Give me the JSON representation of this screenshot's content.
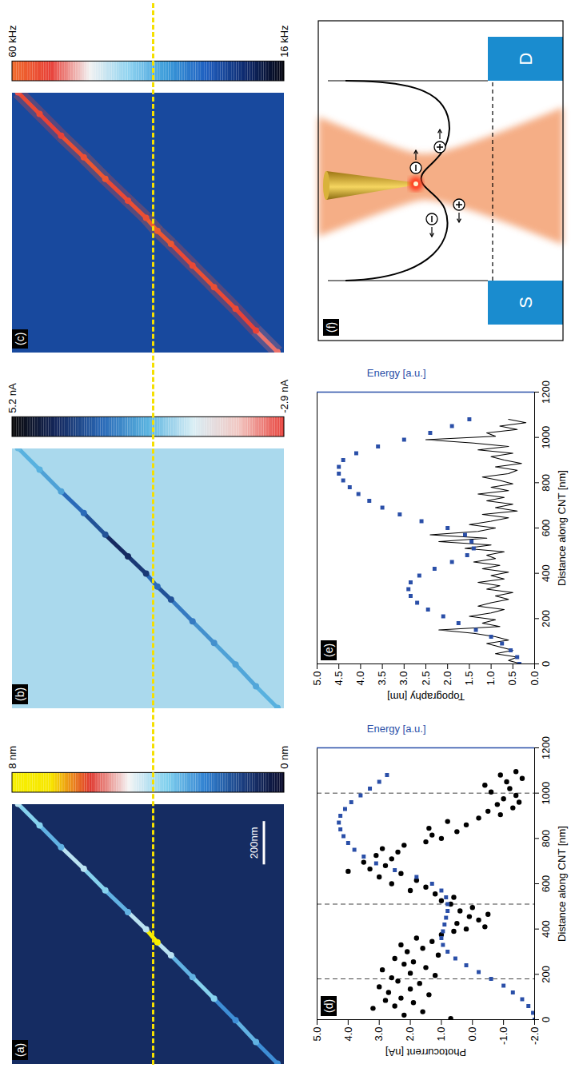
{
  "chart_data": [
    {
      "type": "heatmap",
      "title": "(a)",
      "xlim": [
        0,
        1200
      ],
      "ylim": [
        0,
        1200
      ],
      "tick_labels": false,
      "background": 0.8,
      "trace": {
        "x": [
          0,
          100,
          200,
          300,
          400,
          500,
          560,
          620,
          700,
          800,
          900,
          1000,
          1100,
          1200
        ],
        "y": [
          30,
          125,
          215,
          310,
          405,
          500,
          560,
          610,
          690,
          790,
          885,
          985,
          1080,
          1175
        ],
        "values": [
          2.5,
          3,
          2.5,
          3.5,
          3,
          4,
          8,
          4,
          3,
          3.5,
          4,
          3,
          3.5,
          4
        ]
      },
      "colorbar": {
        "range": [
          0,
          8
        ],
        "ticks": [
          {
            "value": 8,
            "label": "8 nm"
          },
          {
            "value": 0,
            "label": "0 nm"
          }
        ],
        "colors": [
          "#0a0a2a",
          "#1a3a7a",
          "#2f7fd0",
          "#7fd0ee",
          "#f4f4f4",
          "#e03a30",
          "#f7e600",
          "#f7f000"
        ]
      },
      "line_y": 560,
      "scale_bar": {
        "length": 200,
        "label": "200nm"
      }
    },
    {
      "type": "heatmap",
      "title": "(b)",
      "xlim": [
        0,
        1200
      ],
      "ylim": [
        0,
        1200
      ],
      "tick_labels": false,
      "background": 0.3,
      "trace": {
        "x": [
          0,
          100,
          200,
          300,
          400,
          500,
          560,
          620,
          700,
          800,
          900,
          1000,
          1100,
          1200
        ],
        "y": [
          30,
          125,
          215,
          310,
          405,
          500,
          560,
          610,
          690,
          790,
          885,
          985,
          1080,
          1175
        ],
        "values": [
          1.2,
          1.4,
          1.5,
          1.8,
          2.2,
          3,
          2.5,
          3.5,
          3.8,
          3,
          2.5,
          1.5,
          1.2,
          1.0
        ]
      },
      "colorbar": {
        "range": [
          -2.9,
          5.2
        ],
        "ticks": [
          {
            "value": 5.2,
            "label": "5.2 nA"
          },
          {
            "value": -2.9,
            "label": "-2.9 nA"
          }
        ],
        "colors": [
          "#e8423c",
          "#f2c7c2",
          "#d9eef5",
          "#5ab4e0",
          "#2a6ab8",
          "#14285e",
          "#0a0a0a"
        ]
      }
    },
    {
      "type": "heatmap",
      "title": "(c)",
      "xlim": [
        0,
        1200
      ],
      "ylim": [
        0,
        1200
      ],
      "tick_labels": false,
      "background": 26,
      "trace": {
        "x": [
          0,
          100,
          200,
          300,
          400,
          500,
          560,
          620,
          700,
          800,
          900,
          1000,
          1100,
          1200
        ],
        "y": [
          30,
          125,
          215,
          310,
          405,
          500,
          560,
          610,
          690,
          790,
          885,
          985,
          1080,
          1175
        ],
        "values": [
          52,
          54,
          55,
          56,
          55,
          57,
          58,
          56,
          55,
          57,
          56,
          54,
          55,
          53
        ]
      },
      "colorbar": {
        "range": [
          16,
          60
        ],
        "ticks": [
          {
            "value": 60,
            "label": "60 kHz"
          },
          {
            "value": 16,
            "label": "16 kHz"
          }
        ],
        "colors": [
          "#050510",
          "#0e2a6e",
          "#1f5fc0",
          "#3a9ad9",
          "#8fd3f0",
          "#f2f2f2",
          "#e84038",
          "#f06a2a"
        ]
      }
    },
    {
      "type": "scatter",
      "title": "(d)",
      "xlabel": "Distance along CNT [nm]",
      "ylabel": "Photocurrent [nA]",
      "y2label": "Energy [a.u.]",
      "xlim": [
        0,
        1200
      ],
      "ylim": [
        -2,
        5
      ],
      "y2lim": [
        -2,
        5
      ],
      "xticks": [
        0,
        200,
        400,
        600,
        800,
        1000,
        1200
      ],
      "yticks": [
        {
          "value": -2,
          "label": "-2.0"
        },
        {
          "value": -1,
          "label": "-1.0"
        },
        {
          "value": 0,
          "label": "0.0"
        },
        {
          "value": 1,
          "label": "1.0"
        },
        {
          "value": 2,
          "label": "2.0"
        },
        {
          "value": 3,
          "label": "3.0"
        },
        {
          "value": 4,
          "label": "4.0"
        },
        {
          "value": 5,
          "label": "5.0"
        }
      ],
      "vlines": [
        180,
        510,
        1000
      ],
      "series": [
        {
          "type": "scatter",
          "marker": "circle",
          "color": "#000000",
          "x": [
            5,
            20,
            35,
            50,
            60,
            75,
            85,
            95,
            110,
            120,
            135,
            145,
            160,
            170,
            185,
            195,
            205,
            220,
            230,
            245,
            255,
            270,
            285,
            300,
            315,
            330,
            345,
            360,
            375,
            390,
            400,
            410,
            425,
            440,
            455,
            465,
            480,
            495,
            510,
            525,
            540,
            555,
            570,
            585,
            600,
            615,
            630,
            645,
            655,
            665,
            680,
            695,
            710,
            725,
            740,
            755,
            770,
            785,
            800,
            815,
            830,
            845,
            860,
            875,
            890,
            905,
            920,
            935,
            950,
            960,
            975,
            990,
            1005,
            1020,
            1035,
            1050,
            1065,
            1080,
            1095
          ],
          "values": [
            0.7,
            2.2,
            1.6,
            3.2,
            2.5,
            1.9,
            2.8,
            2.3,
            1.4,
            2.7,
            2.0,
            3.0,
            1.7,
            2.4,
            2.6,
            1.2,
            2.0,
            2.9,
            1.5,
            2.2,
            1.9,
            2.5,
            1.1,
            2.1,
            1.6,
            2.3,
            1.3,
            1.8,
            1.0,
            0.6,
            0.2,
            -0.4,
            0.5,
            -0.2,
            0.1,
            -0.5,
            0.4,
            0.0,
            0.7,
            1.0,
            0.6,
            1.2,
            2.0,
            1.5,
            2.6,
            1.8,
            3.0,
            2.3,
            4.0,
            3.3,
            2.8,
            3.5,
            2.6,
            3.1,
            2.4,
            2.9,
            2.2,
            1.5,
            1.0,
            1.3,
            0.5,
            1.4,
            0.2,
            0.8,
            -0.2,
            -0.9,
            -0.5,
            -1.3,
            -0.8,
            -1.5,
            -1.0,
            -1.4,
            -0.6,
            -1.2,
            -0.4,
            -1.1,
            -1.6,
            -0.9,
            -1.4
          ]
        },
        {
          "type": "scatter",
          "marker": "square",
          "color": "#2a4fa8",
          "axis": "y2",
          "x": [
            0,
            30,
            60,
            90,
            120,
            150,
            180,
            210,
            240,
            270,
            300,
            330,
            360,
            390,
            420,
            450,
            480,
            510,
            540,
            570,
            600,
            630,
            660,
            690,
            720,
            750,
            780,
            810,
            840,
            870,
            900,
            930,
            960,
            990,
            1020,
            1050,
            1080
          ],
          "values": [
            -2.0,
            -1.95,
            -1.8,
            -1.6,
            -1.3,
            -1.0,
            -0.6,
            -0.2,
            0.2,
            0.55,
            0.8,
            0.95,
            1.0,
            0.95,
            0.9,
            0.85,
            0.8,
            0.8,
            0.85,
            1.0,
            1.3,
            1.8,
            2.5,
            3.1,
            3.5,
            3.8,
            4.0,
            4.15,
            4.25,
            4.3,
            4.25,
            4.1,
            3.9,
            3.6,
            3.3,
            3.0,
            2.75
          ]
        }
      ]
    },
    {
      "type": "line",
      "title": "(e)",
      "xlabel": "Distance along CNT [nm]",
      "ylabel": "Topography [nm]",
      "y2label": "Energy [a.u.]",
      "xlim": [
        0,
        1200
      ],
      "ylim": [
        0,
        5
      ],
      "y2lim": [
        0,
        5
      ],
      "xticks": [
        0,
        200,
        400,
        600,
        800,
        1000,
        1200
      ],
      "yticks": [
        {
          "value": 0,
          "label": "0.0"
        },
        {
          "value": 0.5,
          "label": "0.5"
        },
        {
          "value": 1,
          "label": "1.0"
        },
        {
          "value": 1.5,
          "label": "1.5"
        },
        {
          "value": 2,
          "label": "2.0"
        },
        {
          "value": 2.5,
          "label": "2.5"
        },
        {
          "value": 3,
          "label": "3.0"
        },
        {
          "value": 3.5,
          "label": "3.5"
        },
        {
          "value": 4,
          "label": "4.0"
        },
        {
          "value": 4.5,
          "label": "4.5"
        },
        {
          "value": 5,
          "label": "5.0"
        }
      ],
      "series": [
        {
          "type": "line",
          "color": "#000000",
          "x": [
            0,
            15,
            30,
            45,
            60,
            75,
            90,
            105,
            120,
            135,
            150,
            165,
            180,
            195,
            210,
            225,
            240,
            255,
            270,
            285,
            300,
            315,
            330,
            345,
            360,
            375,
            390,
            405,
            420,
            435,
            450,
            465,
            480,
            495,
            510,
            525,
            540,
            555,
            570,
            585,
            600,
            615,
            630,
            645,
            660,
            675,
            690,
            705,
            720,
            735,
            750,
            765,
            780,
            795,
            810,
            825,
            840,
            855,
            870,
            885,
            900,
            915,
            930,
            945,
            960,
            975,
            990,
            1005,
            1020,
            1035,
            1050,
            1065,
            1080
          ],
          "values": [
            0.3,
            0.6,
            0.4,
            0.9,
            0.5,
            0.8,
            1.1,
            0.6,
            0.9,
            1.4,
            2.2,
            0.8,
            1.2,
            0.9,
            1.5,
            1.0,
            0.7,
            1.3,
            1.0,
            0.6,
            0.9,
            0.5,
            1.1,
            0.8,
            1.3,
            0.7,
            1.0,
            0.6,
            1.2,
            0.8,
            1.4,
            0.9,
            1.1,
            0.7,
            1.6,
            1.0,
            2.2,
            1.1,
            2.4,
            1.3,
            0.9,
            1.5,
            1.0,
            0.6,
            1.2,
            0.4,
            0.9,
            0.5,
            1.1,
            0.7,
            1.3,
            0.6,
            1.0,
            0.5,
            0.8,
            1.2,
            0.6,
            0.4,
            0.9,
            0.3,
            0.7,
            1.0,
            0.5,
            1.3,
            0.6,
            1.4,
            2.5,
            0.9,
            1.1,
            0.4,
            0.8,
            0.2,
            0.6
          ]
        },
        {
          "type": "scatter",
          "marker": "square",
          "color": "#2a4fa8",
          "axis": "y2",
          "x": [
            0,
            30,
            60,
            90,
            120,
            150,
            180,
            210,
            240,
            270,
            300,
            330,
            360,
            390,
            420,
            450,
            480,
            510,
            540,
            570,
            600,
            630,
            660,
            690,
            720,
            750,
            780,
            810,
            840,
            870,
            900,
            930,
            960,
            990,
            1020,
            1050,
            1080
          ],
          "values": [
            0.35,
            0.4,
            0.55,
            0.75,
            1.0,
            1.35,
            1.75,
            2.1,
            2.45,
            2.7,
            2.85,
            2.9,
            2.85,
            2.65,
            2.3,
            1.9,
            1.55,
            1.4,
            1.45,
            1.6,
            2.0,
            2.6,
            3.1,
            3.5,
            3.8,
            4.05,
            4.25,
            4.4,
            4.5,
            4.5,
            4.4,
            4.1,
            3.6,
            3.0,
            2.4,
            1.9,
            1.5
          ]
        }
      ]
    }
  ],
  "diagram": {
    "title": "(f)",
    "labels": {
      "source": "S",
      "drain": "D"
    }
  }
}
